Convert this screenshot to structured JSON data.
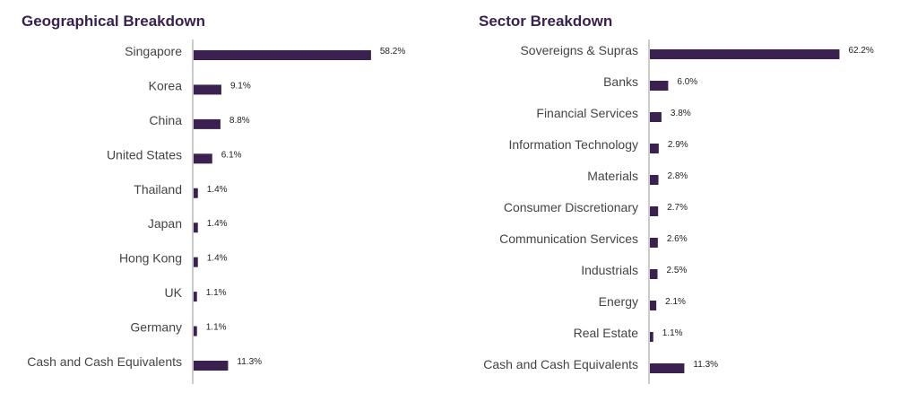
{
  "colors": {
    "bar": "#3a2150",
    "axis": "#999999",
    "title": "#3a2150"
  },
  "chart_data": [
    {
      "type": "bar",
      "orientation": "horizontal",
      "title": "Geographical Breakdown",
      "categories": [
        "Singapore",
        "Korea",
        "China",
        "United States",
        "Thailand",
        "Japan",
        "Hong Kong",
        "UK",
        "Germany",
        "Cash and Cash Equivalents"
      ],
      "values": [
        58.2,
        9.1,
        8.8,
        6.1,
        1.4,
        1.4,
        1.4,
        1.1,
        1.1,
        11.3
      ],
      "value_labels": [
        "58.2%",
        "9.1%",
        "8.8%",
        "6.1%",
        "1.4%",
        "1.4%",
        "1.4%",
        "1.1%",
        "1.1%",
        "11.3%"
      ],
      "xlim": [
        0,
        100
      ],
      "grid": false
    },
    {
      "type": "bar",
      "orientation": "horizontal",
      "title": "Sector Breakdown",
      "categories": [
        "Sovereigns & Supras",
        "Banks",
        "Financial Services",
        "Information Technology",
        "Materials",
        "Consumer Discretionary",
        "Communication Services",
        "Industrials",
        "Energy",
        "Real Estate",
        "Cash and Cash Equivalents"
      ],
      "values": [
        62.2,
        6.0,
        3.8,
        2.9,
        2.8,
        2.7,
        2.6,
        2.5,
        2.1,
        1.1,
        11.3
      ],
      "value_labels": [
        "62.2%",
        "6.0%",
        "3.8%",
        "2.9%",
        "2.8%",
        "2.7%",
        "2.6%",
        "2.5%",
        "2.1%",
        "1.1%",
        "11.3%"
      ],
      "xlim": [
        0,
        100
      ],
      "grid": false
    }
  ]
}
